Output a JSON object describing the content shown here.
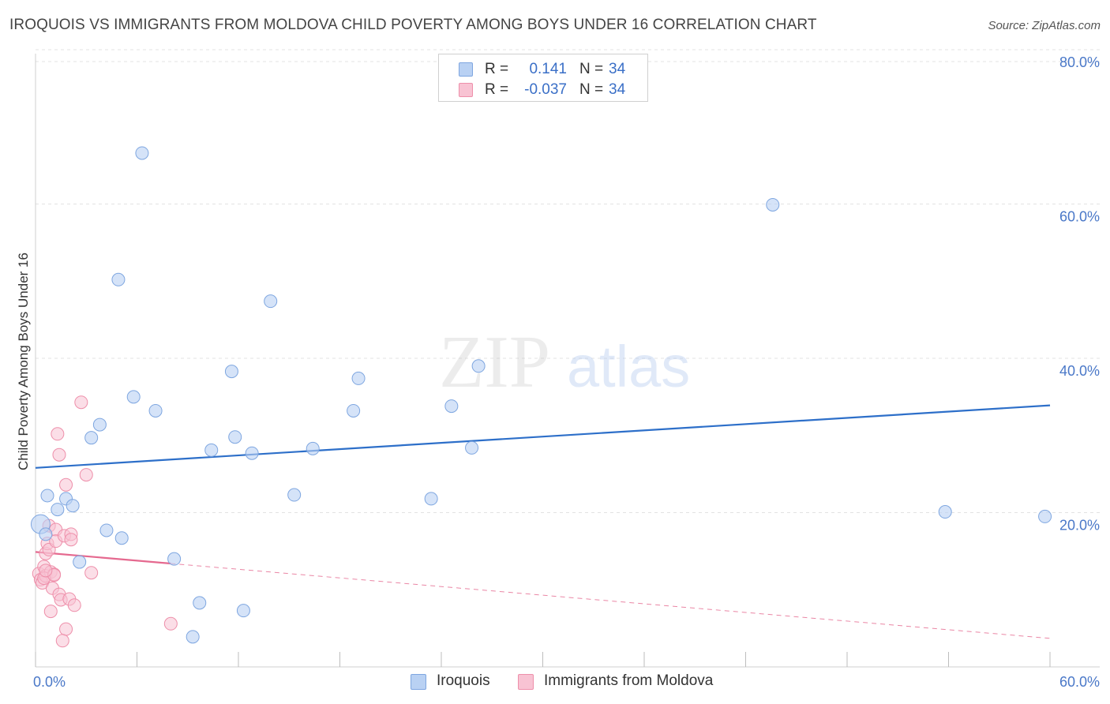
{
  "title": "IROQUOIS VS IMMIGRANTS FROM MOLDOVA CHILD POVERTY AMONG BOYS UNDER 16 CORRELATION CHART",
  "source": "Source: ZipAtlas.com",
  "watermark": {
    "zip": "ZIP",
    "atlas": "atlas"
  },
  "legend": {
    "rows": [
      {
        "r_label": "R =",
        "r_value": "0.141",
        "n_label": "N =",
        "n_value": "34"
      },
      {
        "r_label": "R =",
        "r_value": "-0.037",
        "n_label": "N =",
        "n_value": "34"
      }
    ]
  },
  "colors": {
    "iroquois_fill": "#b9d1f3",
    "iroquois_stroke": "#7ea6e0",
    "iroquois_line": "#2d6fc9",
    "moldova_fill": "#f8c3d3",
    "moldova_stroke": "#ee8faa",
    "moldova_line": "#e5698f",
    "tick_text": "#4a78c8",
    "grid": "#e3e3e3"
  },
  "chart_data": {
    "type": "scatter",
    "title": "IROQUOIS VS IMMIGRANTS FROM MOLDOVA CHILD POVERTY AMONG BOYS UNDER 16 CORRELATION CHART",
    "xlabel": "",
    "ylabel": "Child Poverty Among Boys Under 16",
    "xlim": [
      0,
      60
    ],
    "ylim": [
      0,
      80
    ],
    "x_tick_labels": [
      "0.0%",
      "60.0%"
    ],
    "y_ticks": [
      20,
      40,
      60,
      80
    ],
    "y_tick_labels": [
      "20.0%",
      "40.0%",
      "60.0%",
      "80.0%"
    ],
    "grid": true,
    "legend_position": "bottom",
    "series": [
      {
        "name": "Iroquois",
        "r": 0.141,
        "n": 34,
        "trend": {
          "x": [
            0,
            60
          ],
          "y": [
            25.8,
            33.9
          ],
          "style": "solid"
        },
        "points": [
          {
            "x": 0.3,
            "y": 18.5
          },
          {
            "x": 0.6,
            "y": 17.2
          },
          {
            "x": 0.7,
            "y": 22.2
          },
          {
            "x": 1.3,
            "y": 20.4
          },
          {
            "x": 1.8,
            "y": 21.8
          },
          {
            "x": 2.2,
            "y": 20.9
          },
          {
            "x": 2.6,
            "y": 13.6
          },
          {
            "x": 3.3,
            "y": 29.7
          },
          {
            "x": 3.8,
            "y": 31.4
          },
          {
            "x": 4.2,
            "y": 17.7
          },
          {
            "x": 4.9,
            "y": 50.2
          },
          {
            "x": 5.1,
            "y": 16.7
          },
          {
            "x": 5.8,
            "y": 35.0
          },
          {
            "x": 6.3,
            "y": 66.6
          },
          {
            "x": 7.1,
            "y": 33.2
          },
          {
            "x": 8.2,
            "y": 14.0
          },
          {
            "x": 9.3,
            "y": 3.9
          },
          {
            "x": 9.7,
            "y": 8.3
          },
          {
            "x": 10.4,
            "y": 28.1
          },
          {
            "x": 11.6,
            "y": 38.3
          },
          {
            "x": 11.8,
            "y": 29.8
          },
          {
            "x": 12.3,
            "y": 7.3
          },
          {
            "x": 12.8,
            "y": 27.7
          },
          {
            "x": 13.9,
            "y": 47.4
          },
          {
            "x": 15.3,
            "y": 22.3
          },
          {
            "x": 16.4,
            "y": 28.3
          },
          {
            "x": 18.8,
            "y": 33.2
          },
          {
            "x": 19.1,
            "y": 37.4
          },
          {
            "x": 23.4,
            "y": 21.8
          },
          {
            "x": 24.6,
            "y": 33.8
          },
          {
            "x": 25.8,
            "y": 28.4
          },
          {
            "x": 26.2,
            "y": 39.0
          },
          {
            "x": 43.6,
            "y": 59.9
          },
          {
            "x": 59.7,
            "y": 19.5
          }
        ],
        "extra_points": [
          {
            "x": 53.8,
            "y": 20.1
          }
        ]
      },
      {
        "name": "Immigrants from Moldova",
        "r": -0.037,
        "n": 34,
        "trend": {
          "x": [
            0,
            8
          ],
          "y": [
            14.9,
            13.4
          ],
          "style": "solid",
          "extension": {
            "x": [
              8,
              60
            ],
            "y": [
              13.4,
              3.7
            ],
            "style": "dashed"
          }
        },
        "points": [
          {
            "x": 0.2,
            "y": 12.1
          },
          {
            "x": 0.3,
            "y": 11.3
          },
          {
            "x": 0.4,
            "y": 10.9
          },
          {
            "x": 0.5,
            "y": 13.0
          },
          {
            "x": 0.6,
            "y": 11.8
          },
          {
            "x": 0.6,
            "y": 14.7
          },
          {
            "x": 0.7,
            "y": 16.0
          },
          {
            "x": 0.8,
            "y": 15.2
          },
          {
            "x": 0.8,
            "y": 18.3
          },
          {
            "x": 0.9,
            "y": 12.3
          },
          {
            "x": 0.9,
            "y": 7.2
          },
          {
            "x": 1.0,
            "y": 10.2
          },
          {
            "x": 1.1,
            "y": 12.0
          },
          {
            "x": 1.2,
            "y": 17.8
          },
          {
            "x": 1.2,
            "y": 16.3
          },
          {
            "x": 1.3,
            "y": 30.2
          },
          {
            "x": 1.4,
            "y": 9.4
          },
          {
            "x": 1.4,
            "y": 27.5
          },
          {
            "x": 1.5,
            "y": 8.7
          },
          {
            "x": 1.7,
            "y": 17.0
          },
          {
            "x": 1.8,
            "y": 23.6
          },
          {
            "x": 1.8,
            "y": 4.9
          },
          {
            "x": 1.6,
            "y": 3.4
          },
          {
            "x": 2.0,
            "y": 8.8
          },
          {
            "x": 2.1,
            "y": 17.2
          },
          {
            "x": 2.1,
            "y": 16.5
          },
          {
            "x": 2.3,
            "y": 8.0
          },
          {
            "x": 2.7,
            "y": 34.3
          },
          {
            "x": 3.0,
            "y": 24.9
          },
          {
            "x": 3.3,
            "y": 12.2
          },
          {
            "x": 8.0,
            "y": 5.6
          },
          {
            "x": 0.5,
            "y": 11.5
          },
          {
            "x": 1.1,
            "y": 11.9
          },
          {
            "x": 0.6,
            "y": 12.5
          }
        ]
      }
    ]
  }
}
